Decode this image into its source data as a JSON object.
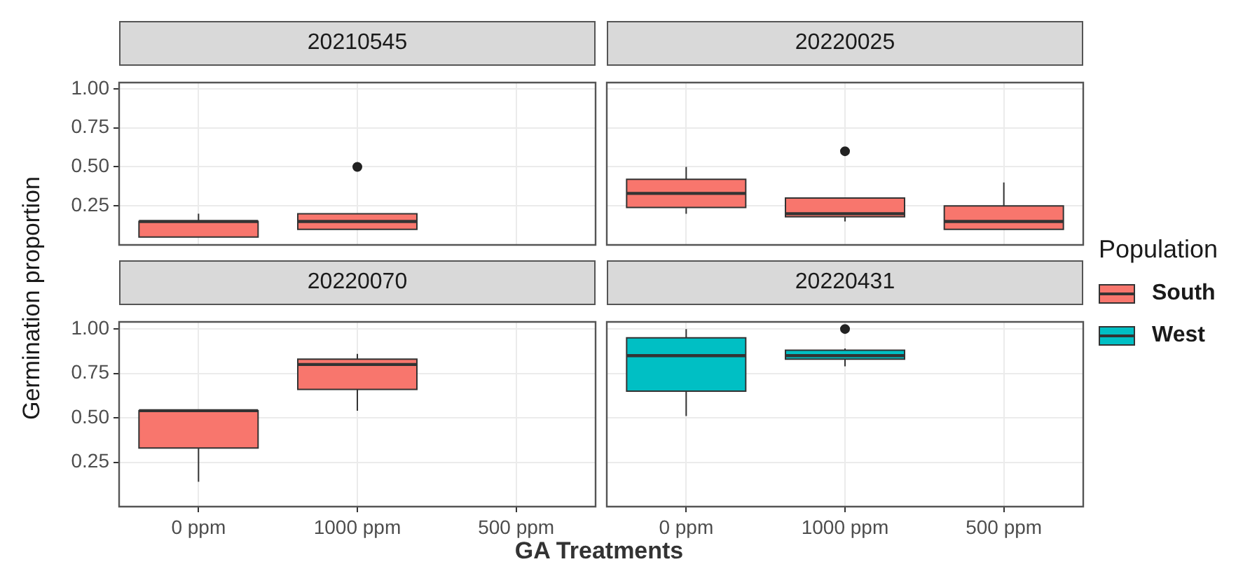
{
  "chart_data": [
    {
      "type": "box",
      "title": "20210545",
      "ylabel": "Germination proportion",
      "categories": [
        "0 ppm",
        "1000 ppm",
        "500 ppm"
      ],
      "ylim": [
        0,
        1.04
      ],
      "yticks": [
        {
          "value": 0.25,
          "label": "0.25"
        },
        {
          "value": 0.5,
          "label": "0.50"
        },
        {
          "value": 0.75,
          "label": "0.75"
        },
        {
          "value": 1,
          "label": "1.00"
        }
      ],
      "grid": true,
      "tick_labels": "y",
      "series": [
        {
          "name": "South",
          "color": "#f8766d",
          "boxes": [
            {
              "low": 0.05,
              "q1": 0.05,
              "median": 0.15,
              "q3": 0.15,
              "high": 0.2
            },
            {
              "low": 0.1,
              "q1": 0.1,
              "median": 0.15,
              "q3": 0.2,
              "high": 0.2,
              "outliers": [
                0.5
              ]
            },
            null
          ]
        }
      ]
    },
    {
      "type": "box",
      "title": "20220025",
      "categories": [
        "0 ppm",
        "1000 ppm",
        "500 ppm"
      ],
      "ylim": [
        0,
        1.04
      ],
      "yticks": [
        {
          "value": 0.25,
          "label": "0.25"
        },
        {
          "value": 0.5,
          "label": "0.50"
        },
        {
          "value": 0.75,
          "label": "0.75"
        },
        {
          "value": 1,
          "label": "1.00"
        }
      ],
      "grid": true,
      "tick_labels": false,
      "series": [
        {
          "name": "South",
          "color": "#f8766d",
          "boxes": [
            {
              "low": 0.2,
              "q1": 0.24,
              "median": 0.33,
              "q3": 0.42,
              "high": 0.5
            },
            {
              "low": 0.15,
              "q1": 0.18,
              "median": 0.2,
              "q3": 0.3,
              "high": 0.3,
              "outliers": [
                0.6
              ]
            },
            {
              "low": 0.1,
              "q1": 0.1,
              "median": 0.15,
              "q3": 0.25,
              "high": 0.4
            }
          ]
        }
      ]
    },
    {
      "type": "box",
      "title": "20220070",
      "xlabel": "GA Treatments",
      "categories": [
        "0 ppm",
        "1000 ppm",
        "500 ppm"
      ],
      "ylim": [
        0,
        1.04
      ],
      "yticks": [
        {
          "value": 0.25,
          "label": "0.25"
        },
        {
          "value": 0.5,
          "label": "0.50"
        },
        {
          "value": 0.75,
          "label": "0.75"
        },
        {
          "value": 1,
          "label": "1.00"
        }
      ],
      "grid": true,
      "series": [
        {
          "name": "South",
          "color": "#f8766d",
          "boxes": [
            {
              "low": 0.14,
              "q1": 0.33,
              "median": 0.54,
              "q3": 0.54,
              "high": 0.54
            },
            {
              "low": 0.54,
              "q1": 0.66,
              "median": 0.8,
              "q3": 0.83,
              "high": 0.86
            },
            null
          ]
        }
      ]
    },
    {
      "type": "box",
      "title": "20220431",
      "categories": [
        "0 ppm",
        "1000 ppm",
        "500 ppm"
      ],
      "ylim": [
        0,
        1.04
      ],
      "yticks": [
        {
          "value": 0.25,
          "label": "0.25"
        },
        {
          "value": 0.5,
          "label": "0.50"
        },
        {
          "value": 0.75,
          "label": "0.75"
        },
        {
          "value": 1,
          "label": "1.00"
        }
      ],
      "grid": true,
      "tick_labels": "x",
      "legend": "right",
      "legend_title": "Population",
      "series": [
        {
          "name": "West",
          "color": "#00bfc4",
          "boxes": [
            {
              "low": 0.51,
              "q1": 0.65,
              "median": 0.85,
              "q3": 0.95,
              "high": 1
            },
            {
              "low": 0.79,
              "q1": 0.83,
              "median": 0.85,
              "q3": 0.88,
              "high": 0.89,
              "outliers": [
                1
              ]
            },
            null
          ]
        }
      ]
    }
  ]
}
